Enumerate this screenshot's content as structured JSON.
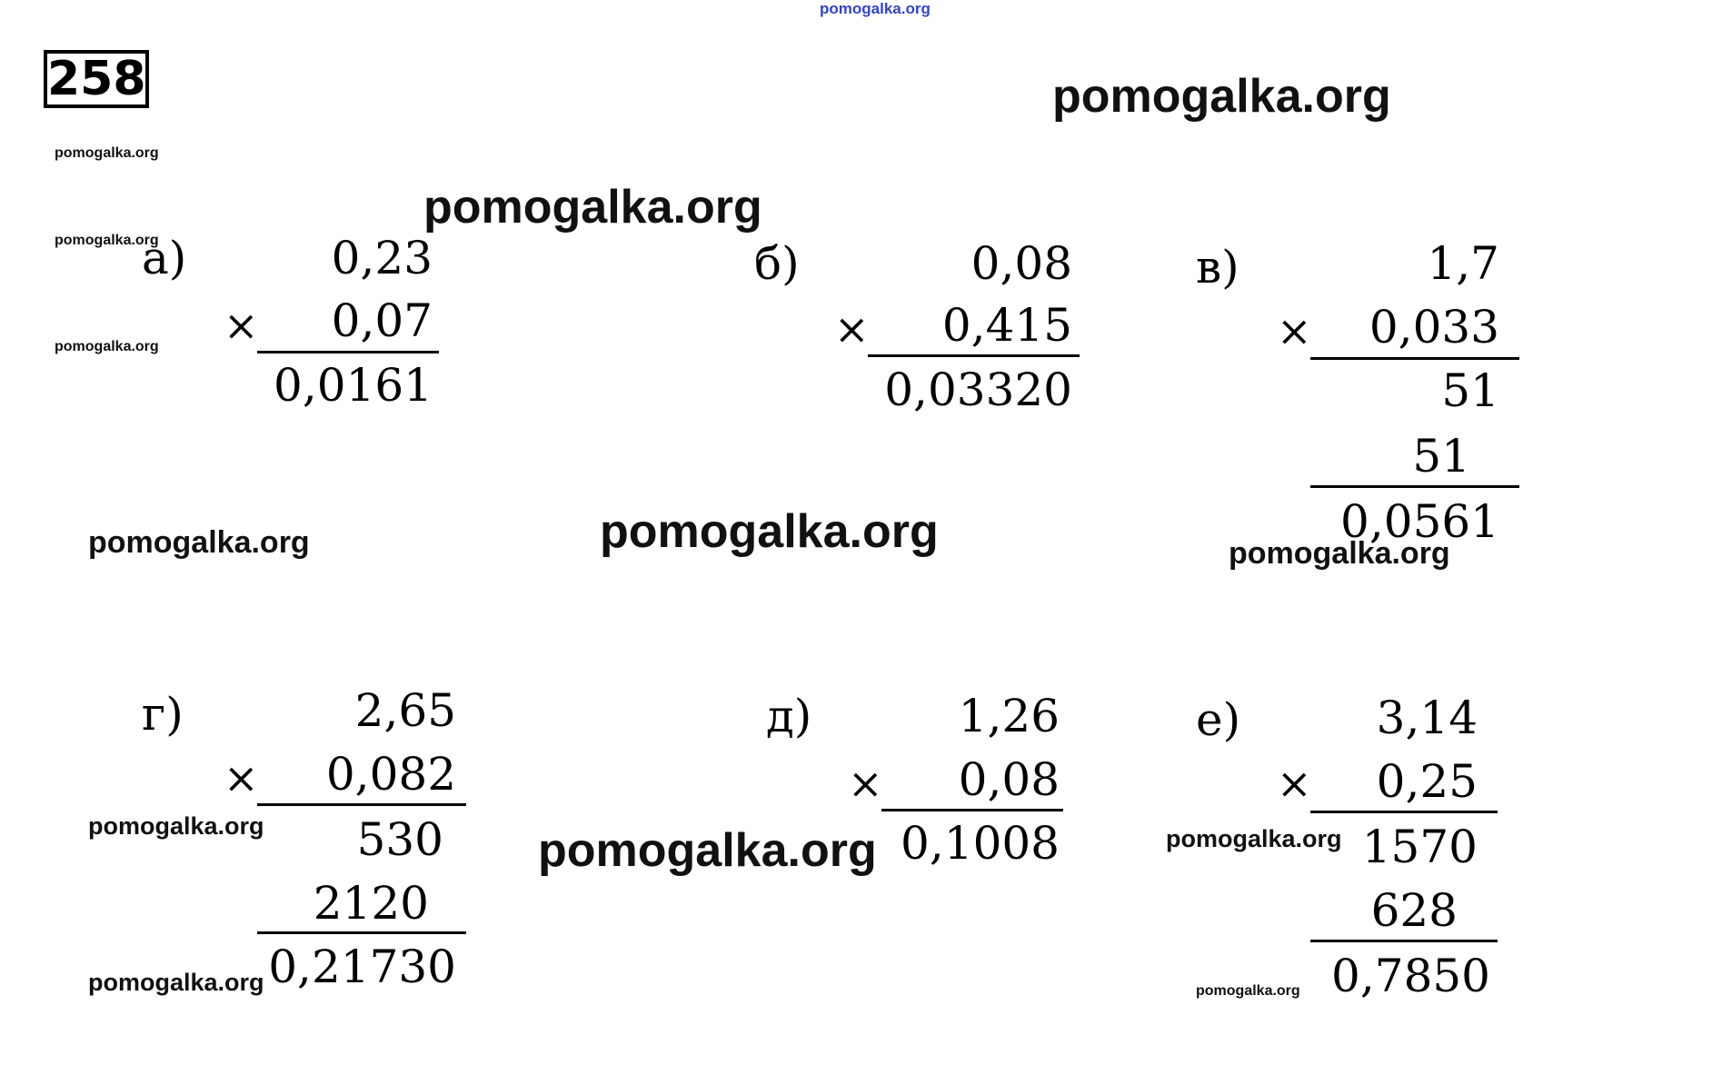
{
  "problem_number": "258",
  "watermark": "pomogalka.org",
  "symbols": {
    "times": "×"
  },
  "a": {
    "label": "а)",
    "m1": "0,23",
    "m2": "0,07",
    "result": "0,0161"
  },
  "b": {
    "label": "б)",
    "m1": "0,08",
    "m2": "0,415",
    "result": "0,03320"
  },
  "v": {
    "label": "в)",
    "m1": "1,7",
    "m2": "0,033",
    "p1": "51",
    "p2": "51",
    "result": "0,0561"
  },
  "g": {
    "label": "г)",
    "m1": "2,65",
    "m2": "0,082",
    "p1": "530",
    "p2": "2120",
    "result": "0,21730"
  },
  "d": {
    "label": "д)",
    "m1": "1,26",
    "m2": "0,08",
    "result": "0,1008"
  },
  "e": {
    "label": "е)",
    "m1": "3,14",
    "m2": "0,25",
    "p1": "1570",
    "p2": "628",
    "result": "0,7850"
  }
}
